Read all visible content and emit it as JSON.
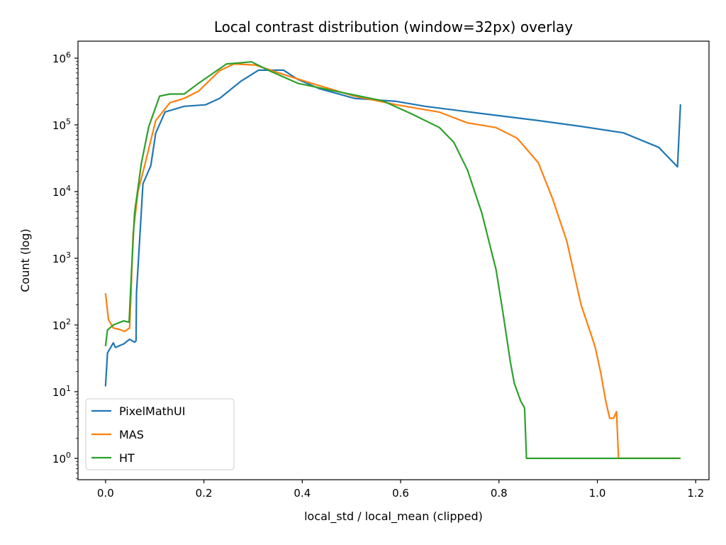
{
  "chart_data": {
    "type": "line",
    "title": "Local contrast distribution (window=32px) overlay",
    "xlabel": "local_std / local_mean (clipped)",
    "ylabel": "Count (log)",
    "xlim": [
      -0.056,
      1.227
    ],
    "ylim_log10": [
      -0.32,
      6.255
    ],
    "yscale": "log",
    "xticks": [
      0.0,
      0.2,
      0.4,
      0.6,
      0.8,
      1.0,
      1.2
    ],
    "xtick_labels": [
      "0.0",
      "0.2",
      "0.4",
      "0.6",
      "0.8",
      "1.0",
      "1.2"
    ],
    "yticks_exp": [
      0,
      1,
      2,
      3,
      4,
      5,
      6
    ],
    "ytick_base": "10",
    "grid": false,
    "legend_position": "lower-left",
    "series": [
      {
        "name": "PixelMathUI",
        "color": "#1f77b4",
        "x": [
          0.0,
          0.004,
          0.016,
          0.02,
          0.037,
          0.049,
          0.059,
          0.062,
          0.063,
          0.071,
          0.076,
          0.092,
          0.102,
          0.121,
          0.16,
          0.203,
          0.232,
          0.275,
          0.311,
          0.362,
          0.391,
          0.434,
          0.506,
          0.592,
          0.65,
          0.765,
          0.88,
          0.967,
          1.053,
          1.125,
          1.163,
          1.169
        ],
        "y": [
          12,
          38,
          54,
          46,
          52,
          61,
          55,
          58,
          300,
          3000,
          13000,
          24500,
          75000,
          156000,
          190000,
          200000,
          250000,
          450000,
          660000,
          660000,
          480000,
          350000,
          250000,
          225000,
          190000,
          148000,
          116000,
          95000,
          76000,
          46000,
          23500,
          204000
        ]
      },
      {
        "name": "MAS",
        "color": "#ff7f0e",
        "x": [
          0.0,
          0.006,
          0.016,
          0.03,
          0.039,
          0.049,
          0.052,
          0.056,
          0.066,
          0.081,
          0.102,
          0.131,
          0.16,
          0.189,
          0.232,
          0.261,
          0.304,
          0.362,
          0.419,
          0.506,
          0.592,
          0.679,
          0.736,
          0.794,
          0.837,
          0.88,
          0.909,
          0.938,
          0.967,
          0.989,
          0.996,
          1.007,
          1.017,
          1.025,
          1.033,
          1.039,
          1.043,
          1.169
        ],
        "y": [
          300,
          120,
          90,
          85,
          80,
          90,
          320,
          2300,
          10000,
          27000,
          116000,
          215000,
          250000,
          320000,
          650000,
          820000,
          790000,
          570000,
          420000,
          270000,
          200000,
          155000,
          107000,
          91000,
          63000,
          27000,
          7800,
          1800,
          200,
          66,
          45,
          19,
          7.3,
          4,
          4,
          5,
          1,
          1
        ]
      },
      {
        "name": "HT",
        "color": "#2ca02c",
        "x": [
          0.0,
          0.004,
          0.016,
          0.037,
          0.048,
          0.053,
          0.059,
          0.073,
          0.088,
          0.11,
          0.131,
          0.16,
          0.189,
          0.246,
          0.297,
          0.333,
          0.391,
          0.477,
          0.563,
          0.621,
          0.679,
          0.708,
          0.736,
          0.765,
          0.794,
          0.808,
          0.823,
          0.831,
          0.844,
          0.852,
          0.856,
          1.169
        ],
        "y": [
          48,
          84,
          100,
          115,
          110,
          680,
          4800,
          27000,
          95000,
          270000,
          290000,
          290000,
          420000,
          820000,
          880000,
          650000,
          420000,
          310000,
          230000,
          148000,
          91000,
          55000,
          21000,
          4800,
          680,
          155,
          28,
          13.5,
          7.3,
          5.7,
          1,
          1
        ]
      }
    ]
  }
}
